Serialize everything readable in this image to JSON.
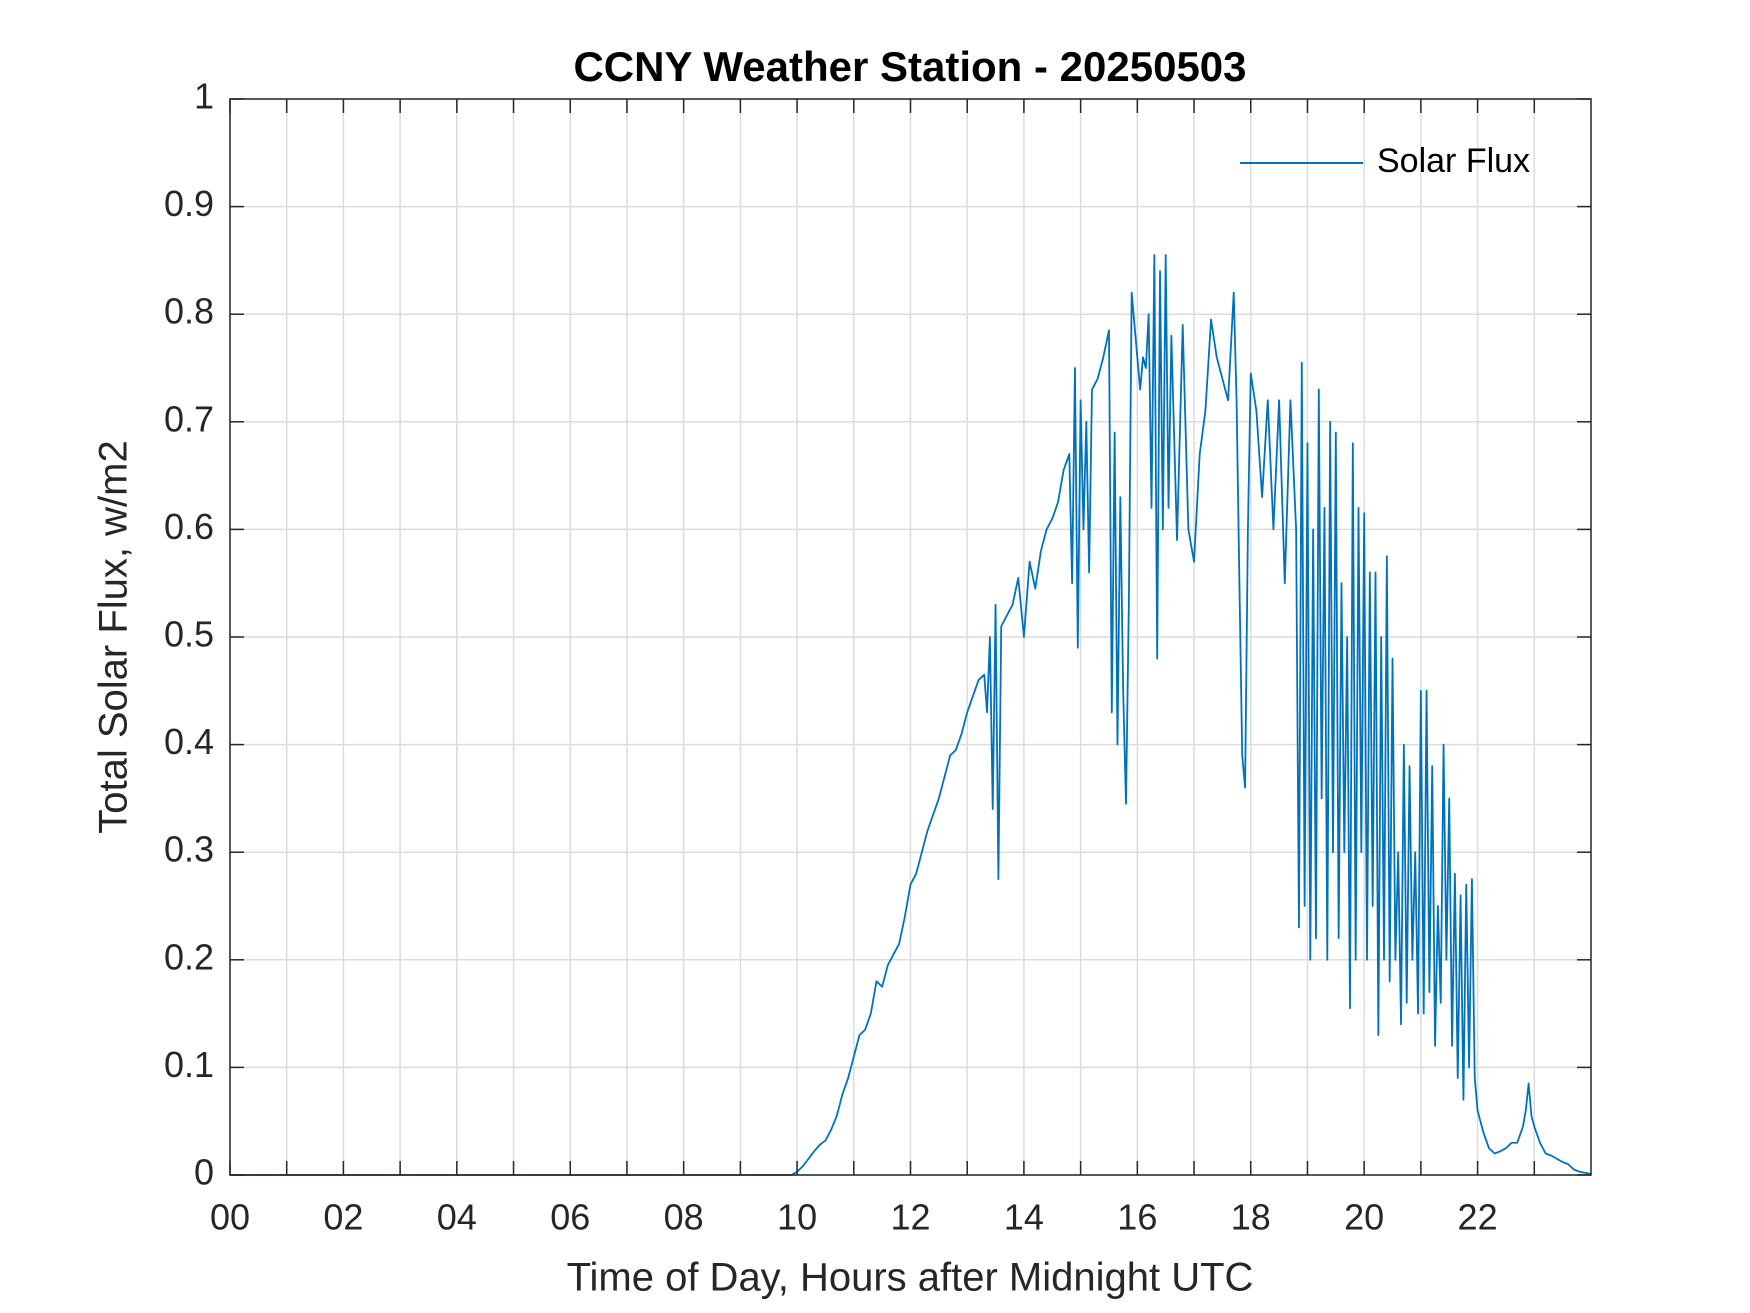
{
  "chart_data": {
    "type": "line",
    "title": "CCNY Weather Station - 20250503",
    "xlabel": "Time of Day, Hours after Midnight UTC",
    "ylabel": "Total Solar Flux, w/m2",
    "xlim": [
      0,
      24
    ],
    "ylim": [
      0,
      1
    ],
    "xticks": [
      {
        "value": 0,
        "label": "00"
      },
      {
        "value": 2,
        "label": "02"
      },
      {
        "value": 4,
        "label": "04"
      },
      {
        "value": 6,
        "label": "06"
      },
      {
        "value": 8,
        "label": "08"
      },
      10,
      12,
      14,
      16,
      18,
      20,
      22
    ],
    "x_minor_ticks": [
      1,
      3,
      5,
      7,
      9,
      11,
      13,
      15,
      17,
      19,
      21,
      23
    ],
    "yticks": [
      0,
      0.1,
      0.2,
      0.3,
      0.4,
      0.5,
      0.6,
      0.7,
      0.8,
      0.9,
      1
    ],
    "grid": true,
    "legend_position": "upper-right",
    "x": [
      0,
      9.9,
      10.0,
      10.1,
      10.2,
      10.3,
      10.4,
      10.5,
      10.6,
      10.7,
      10.8,
      10.9,
      11.0,
      11.1,
      11.2,
      11.3,
      11.4,
      11.5,
      11.6,
      11.7,
      11.8,
      11.9,
      12.0,
      12.1,
      12.2,
      12.3,
      12.4,
      12.5,
      12.6,
      12.7,
      12.8,
      12.9,
      13.0,
      13.1,
      13.2,
      13.3,
      13.35,
      13.4,
      13.45,
      13.5,
      13.55,
      13.6,
      13.7,
      13.8,
      13.9,
      14.0,
      14.1,
      14.2,
      14.3,
      14.4,
      14.5,
      14.6,
      14.7,
      14.8,
      14.85,
      14.9,
      14.95,
      15.0,
      15.05,
      15.1,
      15.15,
      15.2,
      15.3,
      15.4,
      15.5,
      15.55,
      15.6,
      15.65,
      15.7,
      15.75,
      15.8,
      15.85,
      15.9,
      16.0,
      16.05,
      16.1,
      16.15,
      16.2,
      16.25,
      16.3,
      16.35,
      16.4,
      16.45,
      16.5,
      16.55,
      16.6,
      16.7,
      16.8,
      16.9,
      17.0,
      17.1,
      17.2,
      17.3,
      17.4,
      17.5,
      17.6,
      17.7,
      17.75,
      17.8,
      17.85,
      17.9,
      17.95,
      18.0,
      18.1,
      18.2,
      18.3,
      18.4,
      18.5,
      18.6,
      18.7,
      18.8,
      18.85,
      18.9,
      18.95,
      19.0,
      19.05,
      19.1,
      19.15,
      19.2,
      19.25,
      19.3,
      19.35,
      19.4,
      19.45,
      19.5,
      19.55,
      19.6,
      19.65,
      19.7,
      19.75,
      19.8,
      19.85,
      19.9,
      19.95,
      20.0,
      20.05,
      20.1,
      20.15,
      20.2,
      20.25,
      20.3,
      20.35,
      20.4,
      20.45,
      20.5,
      20.55,
      20.6,
      20.65,
      20.7,
      20.75,
      20.8,
      20.85,
      20.9,
      20.95,
      21.0,
      21.05,
      21.1,
      21.15,
      21.2,
      21.25,
      21.3,
      21.35,
      21.4,
      21.45,
      21.5,
      21.55,
      21.6,
      21.65,
      21.7,
      21.75,
      21.8,
      21.85,
      21.9,
      21.95,
      22.0,
      22.1,
      22.2,
      22.3,
      22.4,
      22.5,
      22.6,
      22.7,
      22.8,
      22.85,
      22.9,
      22.95,
      23.0,
      23.1,
      23.2,
      23.3,
      23.4,
      23.5,
      23.6,
      23.7,
      23.8,
      23.9,
      24.0
    ],
    "series": [
      {
        "name": "Solar Flux",
        "color": "#0072bd",
        "values": [
          0,
          0,
          0.003,
          0.008,
          0.015,
          0.022,
          0.028,
          0.032,
          0.042,
          0.055,
          0.075,
          0.09,
          0.11,
          0.13,
          0.135,
          0.15,
          0.18,
          0.175,
          0.195,
          0.205,
          0.215,
          0.24,
          0.27,
          0.28,
          0.3,
          0.32,
          0.335,
          0.35,
          0.37,
          0.39,
          0.395,
          0.41,
          0.43,
          0.445,
          0.46,
          0.465,
          0.43,
          0.5,
          0.34,
          0.53,
          0.275,
          0.51,
          0.52,
          0.53,
          0.555,
          0.5,
          0.57,
          0.545,
          0.58,
          0.6,
          0.61,
          0.625,
          0.655,
          0.67,
          0.55,
          0.75,
          0.49,
          0.72,
          0.6,
          0.7,
          0.56,
          0.73,
          0.74,
          0.76,
          0.785,
          0.43,
          0.69,
          0.4,
          0.63,
          0.45,
          0.345,
          0.53,
          0.82,
          0.76,
          0.73,
          0.76,
          0.75,
          0.8,
          0.62,
          0.855,
          0.48,
          0.84,
          0.6,
          0.855,
          0.62,
          0.78,
          0.59,
          0.79,
          0.6,
          0.57,
          0.67,
          0.71,
          0.795,
          0.76,
          0.74,
          0.72,
          0.82,
          0.72,
          0.55,
          0.39,
          0.36,
          0.6,
          0.745,
          0.71,
          0.63,
          0.72,
          0.6,
          0.72,
          0.55,
          0.72,
          0.6,
          0.23,
          0.755,
          0.25,
          0.68,
          0.2,
          0.6,
          0.22,
          0.73,
          0.35,
          0.62,
          0.2,
          0.7,
          0.3,
          0.69,
          0.22,
          0.55,
          0.3,
          0.5,
          0.155,
          0.68,
          0.2,
          0.62,
          0.3,
          0.615,
          0.2,
          0.56,
          0.25,
          0.56,
          0.13,
          0.5,
          0.2,
          0.575,
          0.18,
          0.48,
          0.2,
          0.3,
          0.14,
          0.4,
          0.16,
          0.38,
          0.2,
          0.3,
          0.15,
          0.45,
          0.15,
          0.45,
          0.17,
          0.38,
          0.12,
          0.25,
          0.16,
          0.4,
          0.2,
          0.35,
          0.12,
          0.28,
          0.09,
          0.26,
          0.07,
          0.27,
          0.1,
          0.275,
          0.09,
          0.06,
          0.04,
          0.025,
          0.02,
          0.022,
          0.025,
          0.03,
          0.03,
          0.045,
          0.06,
          0.085,
          0.055,
          0.045,
          0.03,
          0.02,
          0.018,
          0.015,
          0.012,
          0.01,
          0.005,
          0.003,
          0.002,
          0.001
        ]
      }
    ]
  }
}
